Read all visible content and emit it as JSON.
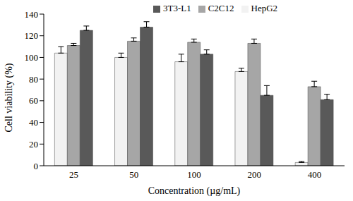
{
  "chart_data": {
    "type": "bar",
    "categories": [
      "25",
      "50",
      "100",
      "200",
      "400"
    ],
    "series": [
      {
        "name": "HepG2",
        "color": "#f2f2f2",
        "values": [
          104,
          100,
          96,
          87,
          3
        ],
        "errors": [
          6,
          4,
          7,
          3,
          1
        ]
      },
      {
        "name": "C2C12",
        "color": "#a6a6a6",
        "values": [
          111,
          115,
          114,
          113,
          73
        ],
        "errors": [
          2,
          3,
          3,
          4,
          5
        ]
      },
      {
        "name": "3T3-L1",
        "color": "#595959",
        "values": [
          125,
          128,
          103,
          65,
          61
        ],
        "errors": [
          4,
          5,
          4,
          9,
          5
        ]
      }
    ],
    "x_label": "Concentration (µg/mL)",
    "y_label": "Cell viability (%)",
    "ylim": [
      0,
      140
    ],
    "yticks": [
      0,
      20,
      40,
      60,
      80,
      100,
      120,
      140
    ],
    "grid": false,
    "legend": "top"
  }
}
